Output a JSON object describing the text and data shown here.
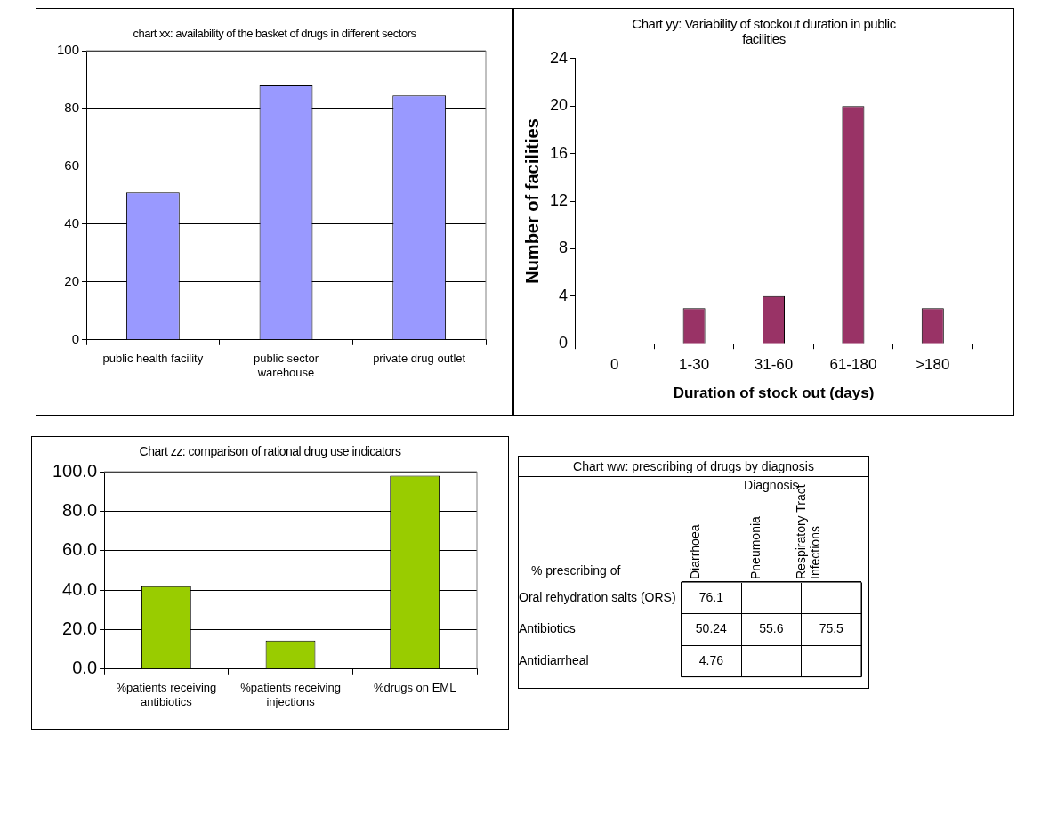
{
  "chart_data": [
    {
      "type": "bar",
      "title": "chart xx: availability of the basket of drugs in different sectors",
      "categories": [
        "public health facility",
        "public sector warehouse",
        "private drug outlet"
      ],
      "values": [
        51,
        88,
        84.5
      ],
      "color": "#9999ff",
      "ylim": [
        0,
        100
      ],
      "yticks": [
        0,
        20,
        40,
        60,
        80,
        100
      ],
      "grid": "y",
      "legend": false
    },
    {
      "type": "bar",
      "title": "Chart yy: Variability of stockout duration in public facilities",
      "xlabel": "Duration of stock out (days)",
      "ylabel": "Number of facilities",
      "categories": [
        "0",
        "1-30",
        "31-60",
        "61-180",
        ">180"
      ],
      "values": [
        0,
        3,
        4,
        20,
        3
      ],
      "color": "#993366",
      "ylim": [
        0,
        24
      ],
      "yticks": [
        0,
        4,
        8,
        12,
        16,
        20,
        24
      ],
      "grid": false,
      "legend": false
    },
    {
      "type": "bar",
      "title": "Chart zz: comparison of rational drug use indicators",
      "categories": [
        "%patients receiving antibiotics",
        "%patients receiving injections",
        "%drugs on EML"
      ],
      "values": [
        42,
        14.5,
        98
      ],
      "color": "#99cc00",
      "ylim": [
        0,
        100
      ],
      "yticks": [
        {
          "value": 0,
          "label": "0.0"
        },
        {
          "value": 20,
          "label": "20.0"
        },
        {
          "value": 40,
          "label": "40.0"
        },
        {
          "value": 60,
          "label": "60.0"
        },
        {
          "value": 80,
          "label": "80.0"
        },
        {
          "value": 100,
          "label": "100.0"
        }
      ],
      "grid": "y",
      "legend": false
    },
    {
      "type": "heatmap",
      "title": "Chart ww: prescribing of drugs by diagnosis",
      "xlabel": "Diagnosis",
      "ylabel": "% prescribing of",
      "categories": [
        "Diarrhoea",
        "Pneumonia",
        "Respiratory Tract Infections"
      ],
      "y_categories": [
        "Oral rehydration salts (ORS)",
        "Antibiotics",
        "Antidiarrheal"
      ],
      "cells": [
        [
          76.1,
          null,
          null
        ],
        [
          50.24,
          55.6,
          75.5
        ],
        [
          4.76,
          null,
          null
        ]
      ],
      "data_labels": true
    }
  ]
}
